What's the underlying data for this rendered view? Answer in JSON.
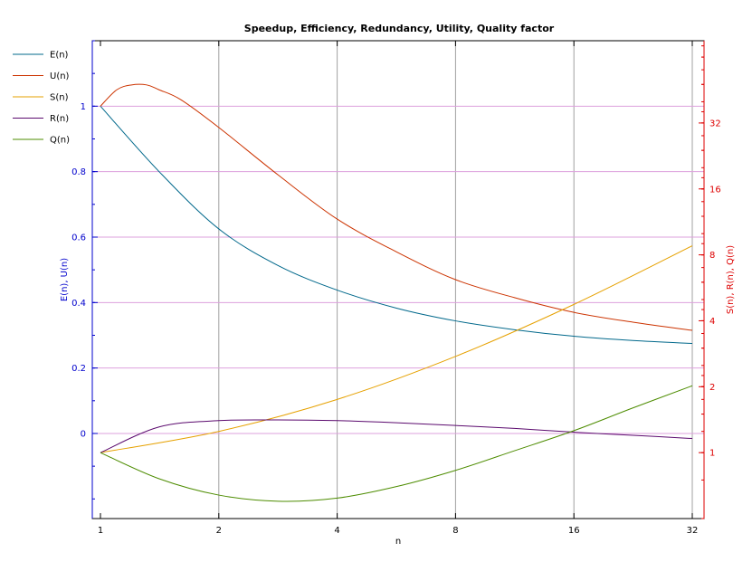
{
  "chart_data": {
    "type": "line",
    "title": "Speedup, Efficiency, Redundancy, Utility, Quality factor",
    "xlabel": "n",
    "ylabel_left": "E(n), U(n)",
    "ylabel_right": "S(n), R(n), Q(n)",
    "x_scale": "log2",
    "x_ticks": [
      1,
      2,
      4,
      8,
      16,
      32
    ],
    "x_tick_labels": [
      "1",
      "2",
      "4",
      "8",
      "16",
      "32"
    ],
    "y_left_range": [
      -0.26,
      1.2
    ],
    "y_left_ticks": [
      0,
      0.2,
      0.4,
      0.6,
      0.8,
      1
    ],
    "y_left_tick_labels": [
      "0",
      "0.2",
      "0.4",
      "0.6",
      "0.8",
      "1"
    ],
    "y_right_scale": "log2",
    "y_right_range": [
      0.5,
      76
    ],
    "y_right_ticks": [
      1,
      2,
      4,
      8,
      16,
      32
    ],
    "y_right_tick_labels": [
      "1",
      "2",
      "4",
      "8",
      "16",
      "32"
    ],
    "grid": true,
    "legend_position": "top-left",
    "colors": {
      "left_axis": "#0000cc",
      "right_axis": "#dd0000",
      "grid_vertical": "#a0a0a0",
      "grid_horizontal": "#dda0dd"
    },
    "series": [
      {
        "name": "E(n)",
        "axis": "left",
        "color": "#00688b",
        "x": [
          1,
          1.41,
          2,
          2.83,
          4,
          5.66,
          8,
          11.3,
          16,
          22.6,
          32
        ],
        "values": [
          1.0,
          0.8,
          0.625,
          0.513,
          0.438,
          0.383,
          0.344,
          0.317,
          0.297,
          0.284,
          0.275
        ]
      },
      {
        "name": "U(n)",
        "axis": "left",
        "color": "#cc3300",
        "x": [
          1,
          1.1,
          1.2,
          1.31,
          1.41,
          1.6,
          2,
          2.83,
          4,
          5.66,
          8,
          11.3,
          16,
          22.6,
          32
        ],
        "values": [
          1.0,
          1.05,
          1.065,
          1.065,
          1.05,
          1.02,
          0.935,
          0.79,
          0.655,
          0.555,
          0.47,
          0.415,
          0.37,
          0.34,
          0.315
        ]
      },
      {
        "name": "S(n)",
        "axis": "right",
        "color": "#e6a100",
        "x": [
          1,
          2,
          4,
          8,
          16,
          32
        ],
        "values": [
          1.0,
          1.25,
          1.75,
          2.75,
          4.75,
          8.8
        ]
      },
      {
        "name": "R(n)",
        "axis": "right",
        "color": "#5b0a6e",
        "x": [
          1,
          1.41,
          2,
          2.83,
          4,
          5.66,
          8,
          11.3,
          16,
          22.6,
          32
        ],
        "values": [
          1.0,
          1.31,
          1.4,
          1.41,
          1.4,
          1.37,
          1.33,
          1.29,
          1.24,
          1.2,
          1.16
        ]
      },
      {
        "name": "Q(n)",
        "axis": "right",
        "color": "#4d8c00",
        "x": [
          1,
          1.41,
          2,
          2.83,
          4,
          5.66,
          8,
          11.3,
          16,
          22.6,
          32
        ],
        "values": [
          1.0,
          0.76,
          0.64,
          0.6,
          0.62,
          0.7,
          0.83,
          1.02,
          1.26,
          1.6,
          2.02
        ]
      }
    ]
  }
}
